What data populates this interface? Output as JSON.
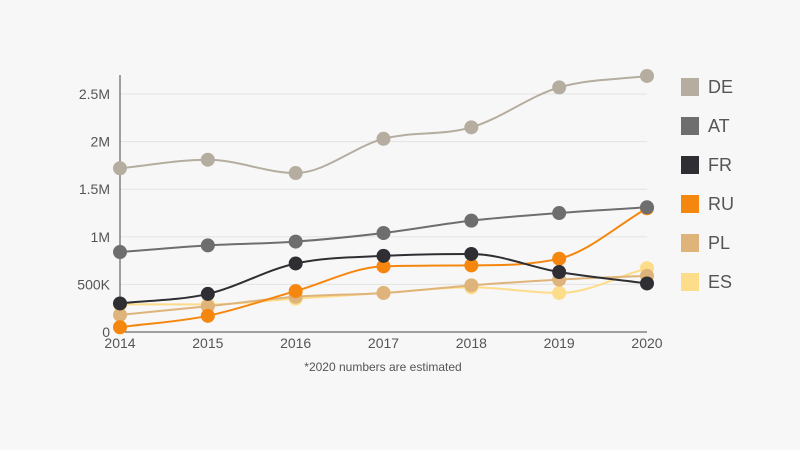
{
  "chart_data": {
    "type": "line",
    "x": [
      2014,
      2015,
      2016,
      2017,
      2018,
      2019,
      2020
    ],
    "x_tick_labels": [
      "2014",
      "2015",
      "2016",
      "2017",
      "2018",
      "2019",
      "2020"
    ],
    "y_ticks": [
      0,
      500000,
      1000000,
      1500000,
      2000000,
      2500000
    ],
    "y_tick_labels": [
      "0",
      "500K",
      "1M",
      "1.5M",
      "2M",
      "2.5M"
    ],
    "ylim": [
      0,
      2700000
    ],
    "grid": true,
    "legend_position": "right",
    "note": "*2020 numbers are estimated",
    "series": [
      {
        "name": "DE",
        "color": "#b5ad9f",
        "values": [
          1720000,
          1810000,
          1670000,
          2030000,
          2150000,
          2570000,
          2690000
        ]
      },
      {
        "name": "AT",
        "color": "#6e6e6e",
        "values": [
          840000,
          910000,
          950000,
          1040000,
          1170000,
          1250000,
          1310000
        ]
      },
      {
        "name": "FR",
        "color": "#2f2f33",
        "values": [
          300000,
          400000,
          720000,
          800000,
          820000,
          630000,
          510000
        ]
      },
      {
        "name": "RU",
        "color": "#f5870f",
        "values": [
          50000,
          170000,
          430000,
          690000,
          700000,
          770000,
          1300000
        ]
      },
      {
        "name": "PL",
        "color": "#dfb47a",
        "values": [
          180000,
          270000,
          370000,
          410000,
          490000,
          550000,
          590000
        ]
      },
      {
        "name": "ES",
        "color": "#fddc8a",
        "values": [
          290000,
          290000,
          350000,
          410000,
          470000,
          410000,
          670000
        ]
      }
    ]
  }
}
